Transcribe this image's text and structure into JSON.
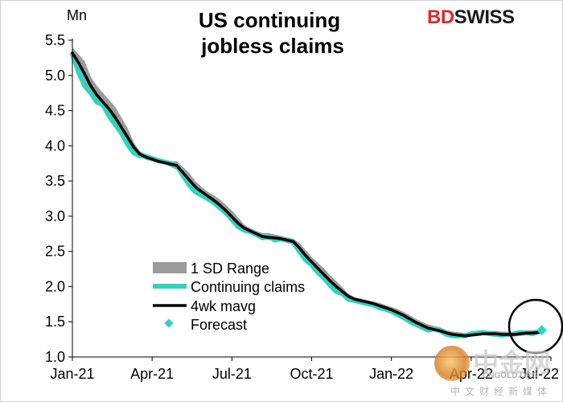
{
  "chart_data": {
    "type": "line",
    "title": "US continuing jobless claims",
    "title_lines": [
      "US continuing",
      "jobless claims"
    ],
    "ylabel": "Mn",
    "xlabel": "",
    "ylim": [
      1.0,
      5.5
    ],
    "yticks": [
      "1.0",
      "1.5",
      "2.0",
      "2.5",
      "3.0",
      "3.5",
      "4.0",
      "4.5",
      "5.0",
      "5.5"
    ],
    "xlim": [
      0,
      78
    ],
    "xtick_labels": [
      "Jan-21",
      "Apr-21",
      "Jul-21",
      "Oct-21",
      "Jan-22",
      "Apr-22",
      "Jul-22"
    ],
    "xtick_positions": [
      0,
      13,
      26,
      39,
      52,
      65,
      78
    ],
    "legend": {
      "placement": "bottom-left",
      "entries": [
        "1 SD Range",
        "Continuing claims",
        "4wk mavg",
        "Forecast"
      ]
    },
    "colors": {
      "range": "#9b9b9b",
      "claims": "#2dd4bf",
      "mavg": "#000000",
      "forecast": "#2dd4bf",
      "highlight": "#000000"
    },
    "series": [
      {
        "name": "Continuing claims",
        "x": [
          0,
          1,
          2,
          3,
          4,
          5,
          6,
          7,
          8,
          9,
          10,
          11,
          12,
          13,
          14,
          15,
          16,
          17,
          18,
          19,
          20,
          21,
          22,
          23,
          24,
          25,
          26,
          27,
          28,
          29,
          30,
          31,
          32,
          33,
          34,
          35,
          36,
          37,
          38,
          39,
          40,
          41,
          42,
          43,
          44,
          45,
          46,
          47,
          48,
          49,
          50,
          51,
          52,
          53,
          54,
          55,
          56,
          57,
          58,
          59,
          60,
          61,
          62,
          63,
          64,
          65,
          66,
          67,
          68,
          69,
          70,
          71,
          72,
          73,
          74,
          75,
          76
        ],
        "values": [
          5.3,
          5.05,
          4.85,
          4.75,
          4.62,
          4.58,
          4.42,
          4.3,
          4.18,
          4.02,
          3.9,
          3.86,
          3.85,
          3.82,
          3.79,
          3.77,
          3.75,
          3.72,
          3.58,
          3.45,
          3.35,
          3.3,
          3.25,
          3.2,
          3.12,
          3.05,
          2.95,
          2.85,
          2.8,
          2.78,
          2.74,
          2.69,
          2.72,
          2.66,
          2.68,
          2.66,
          2.63,
          2.5,
          2.38,
          2.31,
          2.2,
          2.12,
          2.02,
          1.93,
          1.9,
          1.82,
          1.8,
          1.78,
          1.76,
          1.74,
          1.7,
          1.68,
          1.65,
          1.6,
          1.56,
          1.5,
          1.46,
          1.42,
          1.38,
          1.4,
          1.37,
          1.32,
          1.3,
          1.3,
          1.3,
          1.33,
          1.34,
          1.35,
          1.33,
          1.32,
          1.31,
          1.32,
          1.33,
          1.35,
          1.34,
          1.33,
          1.36
        ]
      },
      {
        "name": "4wk mavg",
        "x": [
          0,
          1,
          2,
          3,
          4,
          5,
          6,
          7,
          8,
          9,
          10,
          11,
          12,
          13,
          14,
          15,
          16,
          17,
          18,
          19,
          20,
          21,
          22,
          23,
          24,
          25,
          26,
          27,
          28,
          29,
          30,
          31,
          32,
          33,
          34,
          35,
          36,
          37,
          38,
          39,
          40,
          41,
          42,
          43,
          44,
          45,
          46,
          47,
          48,
          49,
          50,
          51,
          52,
          53,
          54,
          55,
          56,
          57,
          58,
          59,
          60,
          61,
          62,
          63,
          64,
          65,
          66,
          67,
          68,
          69,
          70,
          71,
          72,
          73,
          74,
          75,
          76
        ],
        "values": [
          5.32,
          5.18,
          5.02,
          4.85,
          4.72,
          4.62,
          4.52,
          4.4,
          4.26,
          4.12,
          3.98,
          3.88,
          3.84,
          3.81,
          3.78,
          3.76,
          3.74,
          3.72,
          3.62,
          3.52,
          3.42,
          3.35,
          3.29,
          3.23,
          3.16,
          3.08,
          2.99,
          2.9,
          2.83,
          2.79,
          2.75,
          2.71,
          2.7,
          2.69,
          2.68,
          2.66,
          2.64,
          2.55,
          2.44,
          2.35,
          2.26,
          2.17,
          2.08,
          2.0,
          1.93,
          1.86,
          1.82,
          1.8,
          1.78,
          1.76,
          1.73,
          1.7,
          1.67,
          1.63,
          1.59,
          1.54,
          1.49,
          1.45,
          1.41,
          1.39,
          1.37,
          1.34,
          1.32,
          1.31,
          1.3,
          1.31,
          1.32,
          1.33,
          1.33,
          1.33,
          1.32,
          1.32,
          1.32,
          1.33,
          1.34,
          1.34,
          1.35
        ]
      },
      {
        "name": "1 SD Range",
        "x": [
          0,
          1,
          2,
          3,
          4,
          5,
          6,
          7,
          8,
          9,
          10,
          11,
          12,
          13,
          14,
          15,
          16,
          17,
          18,
          19,
          20,
          21,
          22,
          23,
          24,
          25,
          26,
          27,
          28,
          29,
          30,
          31,
          32,
          33,
          34,
          35,
          36,
          37,
          38,
          39,
          40,
          41,
          42,
          43,
          44,
          45,
          46,
          47,
          48,
          49,
          50,
          51,
          52,
          53,
          54,
          55,
          56,
          57,
          58,
          59,
          60,
          61,
          62,
          63,
          64,
          65,
          66,
          67,
          68,
          69,
          70,
          71,
          72,
          73,
          74,
          75,
          76
        ],
        "upper": [
          5.4,
          5.3,
          5.2,
          4.98,
          4.85,
          4.75,
          4.65,
          4.55,
          4.4,
          4.25,
          4.05,
          3.92,
          3.88,
          3.84,
          3.81,
          3.78,
          3.78,
          3.78,
          3.7,
          3.62,
          3.5,
          3.42,
          3.35,
          3.3,
          3.24,
          3.16,
          3.08,
          2.98,
          2.88,
          2.83,
          2.79,
          2.76,
          2.76,
          2.74,
          2.72,
          2.7,
          2.68,
          2.62,
          2.52,
          2.42,
          2.34,
          2.26,
          2.16,
          2.08,
          1.99,
          1.9,
          1.85,
          1.83,
          1.81,
          1.79,
          1.77,
          1.74,
          1.71,
          1.68,
          1.64,
          1.59,
          1.54,
          1.5,
          1.46,
          1.44,
          1.42,
          1.38,
          1.36,
          1.35,
          1.34,
          1.35,
          1.36,
          1.37,
          1.37,
          1.37,
          1.36,
          1.36,
          1.36,
          1.37,
          1.38,
          1.38,
          1.39
        ],
        "lower": [
          5.24,
          5.08,
          4.88,
          4.75,
          4.62,
          4.52,
          4.42,
          4.3,
          4.15,
          4.02,
          3.9,
          3.84,
          3.8,
          3.78,
          3.75,
          3.74,
          3.7,
          3.66,
          3.54,
          3.42,
          3.34,
          3.28,
          3.23,
          3.17,
          3.09,
          3.0,
          2.91,
          2.82,
          2.78,
          2.75,
          2.71,
          2.67,
          2.66,
          2.65,
          2.64,
          2.62,
          2.6,
          2.48,
          2.36,
          2.29,
          2.18,
          2.09,
          2.0,
          1.92,
          1.87,
          1.81,
          1.78,
          1.77,
          1.75,
          1.73,
          1.7,
          1.67,
          1.64,
          1.59,
          1.55,
          1.49,
          1.45,
          1.41,
          1.37,
          1.36,
          1.34,
          1.3,
          1.29,
          1.28,
          1.28,
          1.29,
          1.3,
          1.31,
          1.31,
          1.3,
          1.29,
          1.29,
          1.29,
          1.3,
          1.31,
          1.31,
          1.32
        ]
      },
      {
        "name": "Forecast",
        "x": [
          76.5
        ],
        "values": [
          1.38
        ]
      }
    ]
  },
  "brand": {
    "part1": "BD",
    "part2": "SWISS"
  },
  "watermark": {
    "main": "中金网",
    "sub": "CNGOLD.ORG",
    "cn": "中文财经新媒体"
  }
}
